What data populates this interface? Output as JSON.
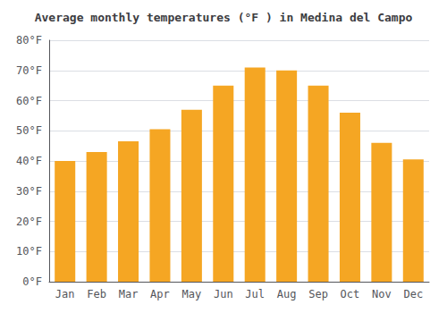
{
  "chart_data": {
    "type": "bar",
    "title": "Average monthly temperatures (°F ) in Medina del Campo",
    "categories": [
      "Jan",
      "Feb",
      "Mar",
      "Apr",
      "May",
      "Jun",
      "Jul",
      "Aug",
      "Sep",
      "Oct",
      "Nov",
      "Dec"
    ],
    "values": [
      40,
      43,
      46.5,
      50.5,
      57,
      65,
      71,
      70,
      65,
      56,
      46,
      40.5
    ],
    "color": "#F5A623",
    "ylim": [
      0,
      80
    ],
    "yticks": [
      {
        "value": 0,
        "label": "0°F"
      },
      {
        "value": 10,
        "label": "10°F"
      },
      {
        "value": 20,
        "label": "20°F"
      },
      {
        "value": 30,
        "label": "30°F"
      },
      {
        "value": 40,
        "label": "40°F"
      },
      {
        "value": 50,
        "label": "50°F"
      },
      {
        "value": 60,
        "label": "60°F"
      },
      {
        "value": 70,
        "label": "70°F"
      },
      {
        "value": 80,
        "label": "80°F"
      }
    ],
    "grid": true
  }
}
